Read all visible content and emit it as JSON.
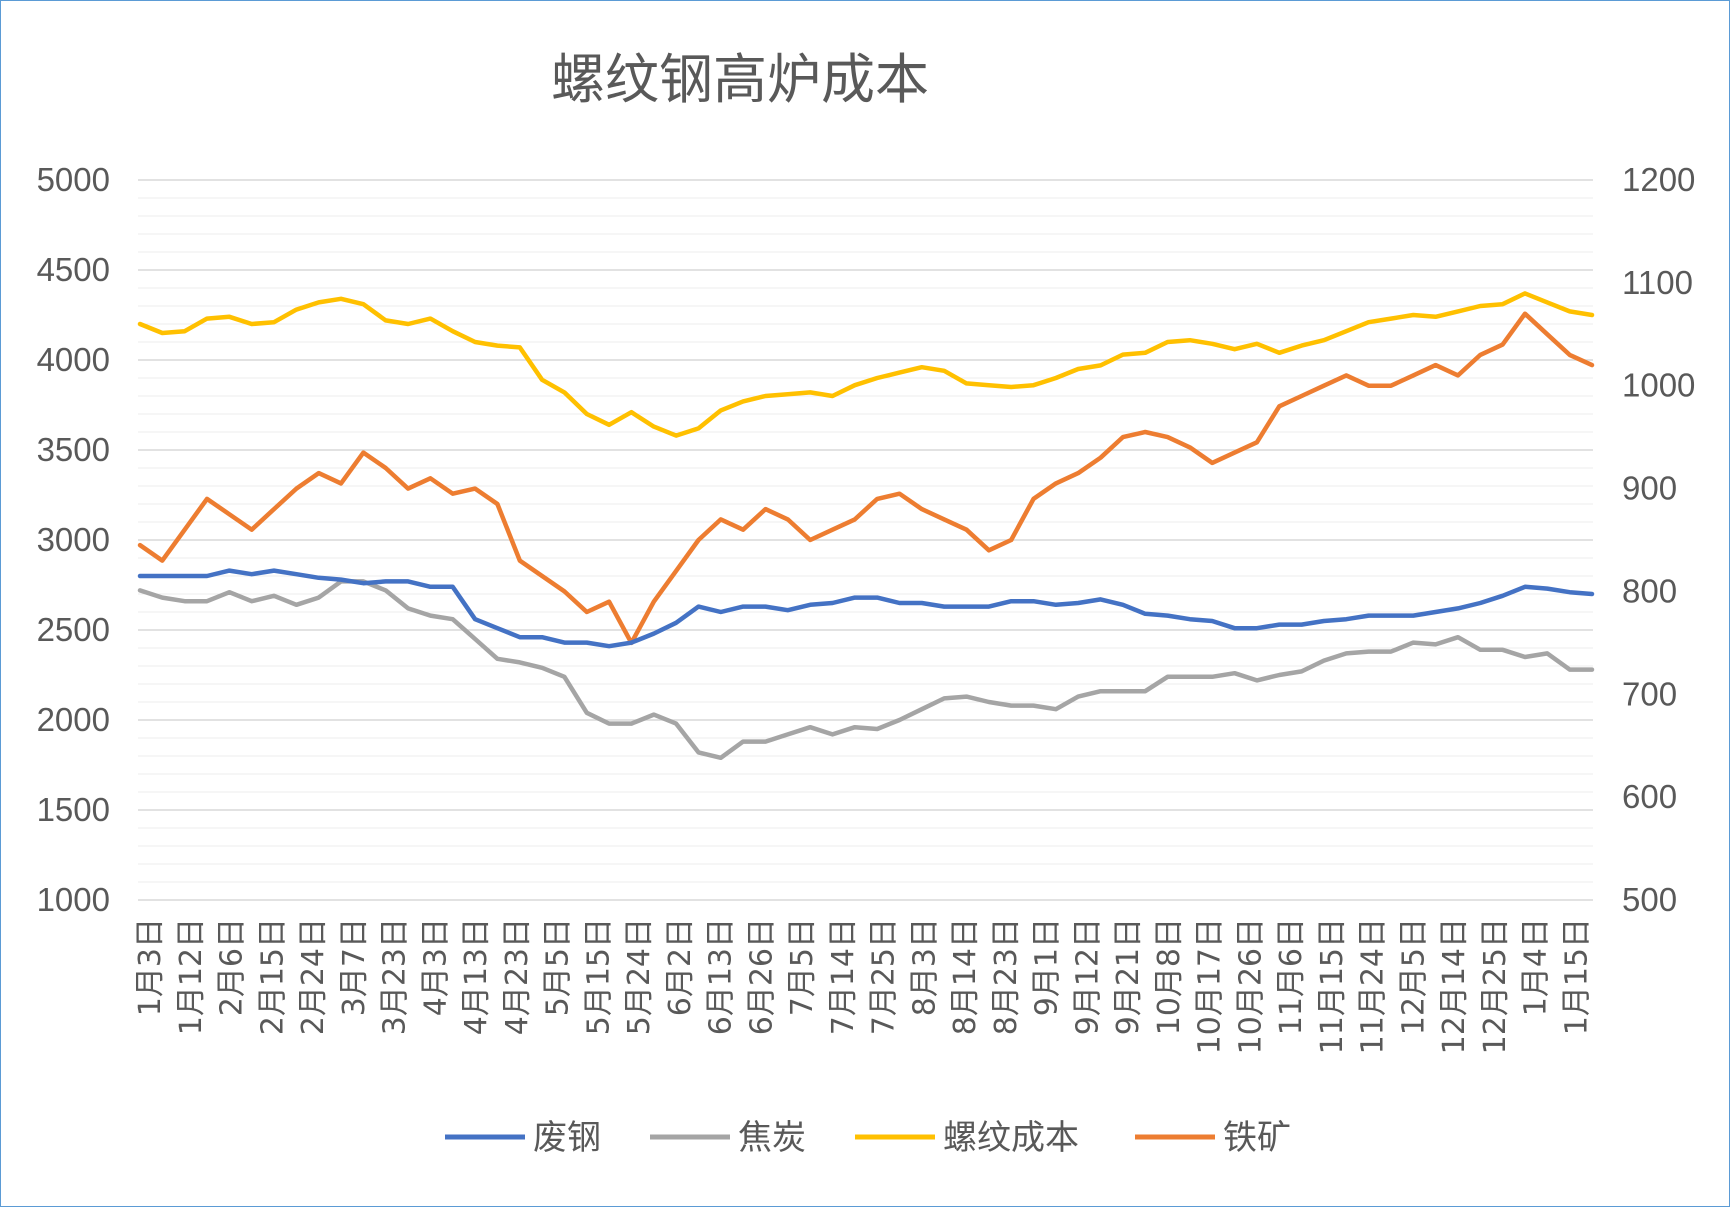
{
  "chart_data": {
    "type": "line",
    "title": "螺纹钢高炉成本",
    "y_left": {
      "ylim": [
        1000,
        5000
      ],
      "ticks": [
        "1000",
        "1500",
        "2000",
        "2500",
        "3000",
        "3500",
        "4000",
        "4500",
        "5000"
      ]
    },
    "y_right": {
      "ylim": [
        500,
        1200
      ],
      "ticks": [
        "500",
        "600",
        "700",
        "800",
        "900",
        "1000",
        "1100",
        "1200"
      ]
    },
    "grid": true,
    "legend_position": "bottom",
    "x_tick_labels": [
      "1月3日",
      "1月12日",
      "2月6日",
      "2月15日",
      "2月24日",
      "3月7日",
      "3月23日",
      "4月3日",
      "4月13日",
      "4月23日",
      "5月5日",
      "5月15日",
      "5月24日",
      "6月2日",
      "6月13日",
      "6月26日",
      "7月5日",
      "7月14日",
      "7月25日",
      "8月3日",
      "8月14日",
      "8月23日",
      "9月1日",
      "9月12日",
      "9月21日",
      "10月8日",
      "10月17日",
      "10月26日",
      "11月6日",
      "11月15日",
      "11月24日",
      "12月5日",
      "12月14日",
      "12月25日",
      "1月4日",
      "1月15日"
    ],
    "series": [
      {
        "name": "废钢",
        "axis": "left",
        "color": "#4472c4",
        "values": [
          2800,
          2800,
          2800,
          2800,
          2830,
          2810,
          2830,
          2810,
          2790,
          2780,
          2760,
          2770,
          2770,
          2740,
          2740,
          2560,
          2510,
          2460,
          2460,
          2430,
          2430,
          2410,
          2430,
          2480,
          2540,
          2630,
          2600,
          2630,
          2630,
          2610,
          2640,
          2650,
          2680,
          2680,
          2650,
          2650,
          2630,
          2630,
          2630,
          2660,
          2660,
          2640,
          2650,
          2670,
          2640,
          2590,
          2580,
          2560,
          2550,
          2510,
          2510,
          2530,
          2530,
          2550,
          2560,
          2580,
          2580,
          2580,
          2600,
          2620,
          2650,
          2690,
          2740,
          2730,
          2710,
          2700
        ]
      },
      {
        "name": "焦炭",
        "axis": "left",
        "color": "#a5a5a5",
        "values": [
          2720,
          2680,
          2660,
          2660,
          2710,
          2660,
          2690,
          2640,
          2680,
          2770,
          2770,
          2720,
          2620,
          2580,
          2560,
          2450,
          2340,
          2320,
          2290,
          2240,
          2040,
          1980,
          1980,
          2030,
          1980,
          1820,
          1790,
          1880,
          1880,
          1920,
          1960,
          1920,
          1960,
          1950,
          2000,
          2060,
          2120,
          2130,
          2100,
          2080,
          2080,
          2060,
          2130,
          2160,
          2160,
          2160,
          2240,
          2240,
          2240,
          2260,
          2220,
          2250,
          2270,
          2330,
          2370,
          2380,
          2380,
          2430,
          2420,
          2460,
          2390,
          2390,
          2350,
          2370,
          2280,
          2280
        ]
      },
      {
        "name": "螺纹成本",
        "axis": "left",
        "color": "#ffc000",
        "values": [
          4200,
          4150,
          4160,
          4230,
          4240,
          4200,
          4210,
          4280,
          4320,
          4340,
          4310,
          4220,
          4200,
          4230,
          4160,
          4100,
          4080,
          4070,
          3890,
          3820,
          3700,
          3640,
          3710,
          3630,
          3580,
          3620,
          3720,
          3770,
          3800,
          3810,
          3820,
          3800,
          3860,
          3900,
          3930,
          3960,
          3940,
          3870,
          3860,
          3850,
          3860,
          3900,
          3950,
          3970,
          4030,
          4040,
          4100,
          4110,
          4090,
          4060,
          4090,
          4040,
          4080,
          4110,
          4160,
          4210,
          4230,
          4250,
          4240,
          4270,
          4300,
          4310,
          4370,
          4320,
          4270,
          4250
        ]
      },
      {
        "name": "铁矿",
        "axis": "right",
        "color": "#ed7d31",
        "values": [
          845,
          830,
          860,
          890,
          875,
          860,
          880,
          900,
          915,
          905,
          935,
          920,
          900,
          910,
          895,
          900,
          885,
          830,
          815,
          800,
          780,
          790,
          750,
          790,
          820,
          850,
          870,
          860,
          880,
          870,
          850,
          860,
          870,
          890,
          895,
          880,
          870,
          860,
          840,
          850,
          890,
          905,
          915,
          930,
          950,
          955,
          950,
          940,
          925,
          935,
          945,
          980,
          990,
          1000,
          1010,
          1000,
          1000,
          1010,
          1020,
          1010,
          1030,
          1040,
          1070,
          1050,
          1030,
          1020
        ]
      }
    ]
  }
}
